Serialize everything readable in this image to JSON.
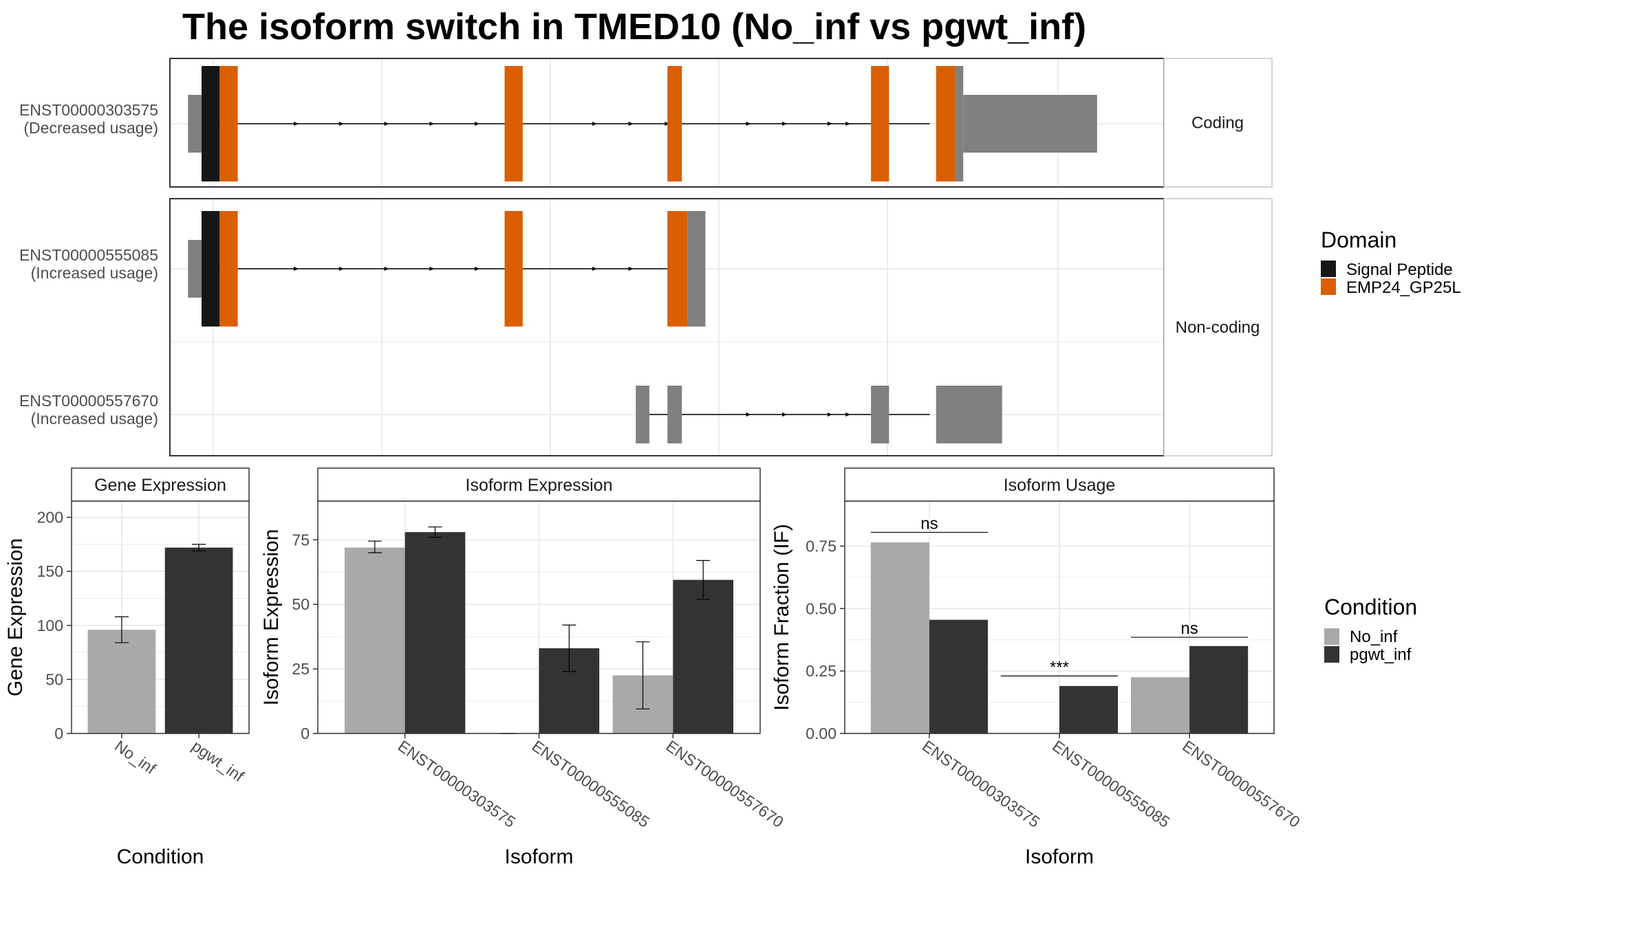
{
  "title": "The isoform switch in TMED10 (No_inf vs pgwt_inf)",
  "colors": {
    "signal_peptide": "#161616",
    "emp24": "#D95F02",
    "utr": "#808080",
    "no_inf": "#A9A9A9",
    "pgwt_inf": "#333333",
    "grid": "#EBEBEB",
    "panel_border": "#333333",
    "strip_bg": "#FFFFFF"
  },
  "chart_data": [
    {
      "type": "gene-structure",
      "facets": [
        "Coding",
        "Non-coding"
      ],
      "x_range": [
        0,
        100
      ],
      "transcripts": [
        {
          "id": "ENST00000303575",
          "label_line1": "ENST00000303575",
          "label_line2": "(Decreased usage)",
          "facet": "Coding",
          "intron": [
            2.5,
            84
          ],
          "segments": [
            {
              "start": 2.0,
              "end": 3.5,
              "kind": "utr"
            },
            {
              "start": 3.5,
              "end": 5.5,
              "kind": "signal_peptide"
            },
            {
              "start": 5.5,
              "end": 7.5,
              "kind": "emp24"
            },
            {
              "start": 37.0,
              "end": 39.0,
              "kind": "emp24"
            },
            {
              "start": 55.0,
              "end": 56.6,
              "kind": "emp24"
            },
            {
              "start": 77.5,
              "end": 79.5,
              "kind": "emp24"
            },
            {
              "start": 84.7,
              "end": 86.8,
              "kind": "emp24"
            },
            {
              "start": 86.8,
              "end": 87.7,
              "kind": "utr"
            },
            {
              "start": 87.7,
              "end": 102.5,
              "kind": "utr_small"
            }
          ],
          "arrows": [
            14,
            19,
            24,
            29,
            34,
            47,
            51,
            55,
            64,
            68,
            73,
            75
          ]
        },
        {
          "id": "ENST00000555085",
          "label_line1": "ENST00000555085",
          "label_line2": "(Increased usage)",
          "facet": "Non-coding",
          "intron": [
            2.5,
            55
          ],
          "segments": [
            {
              "start": 2.0,
              "end": 3.5,
              "kind": "utr"
            },
            {
              "start": 3.5,
              "end": 5.5,
              "kind": "signal_peptide"
            },
            {
              "start": 5.5,
              "end": 7.5,
              "kind": "emp24"
            },
            {
              "start": 37.0,
              "end": 39.0,
              "kind": "emp24"
            },
            {
              "start": 55.0,
              "end": 57.2,
              "kind": "emp24"
            },
            {
              "start": 57.2,
              "end": 59.2,
              "kind": "utr"
            }
          ],
          "arrows": [
            14,
            19,
            24,
            29,
            34,
            47,
            51
          ]
        },
        {
          "id": "ENST00000557670",
          "label_line1": "ENST00000557670",
          "label_line2": "(Increased usage)",
          "facet": "Non-coding",
          "intron": [
            52,
            84
          ],
          "segments": [
            {
              "start": 51.5,
              "end": 53.0,
              "kind": "utr_small"
            },
            {
              "start": 55.0,
              "end": 56.6,
              "kind": "utr_small"
            },
            {
              "start": 77.5,
              "end": 79.5,
              "kind": "utr_small"
            },
            {
              "start": 84.7,
              "end": 92.0,
              "kind": "utr_small"
            }
          ],
          "arrows": [
            64,
            68,
            73,
            75
          ]
        }
      ],
      "legend": {
        "title": "Domain",
        "entries": [
          {
            "label": "Signal Peptide",
            "color": "#161616"
          },
          {
            "label": "EMP24_GP25L",
            "color": "#D95F02"
          }
        ]
      }
    },
    {
      "type": "bar",
      "strip": "Gene Expression",
      "xlabel": "Condition",
      "ylabel": "Gene Expression",
      "ylim": [
        0,
        215
      ],
      "yticks": [
        0,
        50,
        100,
        150,
        200
      ],
      "categories": [
        "No_inf",
        "pgwt_inf"
      ],
      "values": [
        96,
        172
      ],
      "errors": [
        [
          84,
          108
        ],
        [
          169,
          175
        ]
      ]
    },
    {
      "type": "bar",
      "strip": "Isoform Expression",
      "xlabel": "Isoform",
      "ylabel": "Isoform Expression",
      "ylim": [
        0,
        90
      ],
      "yticks": [
        0,
        25,
        50,
        75
      ],
      "categories": [
        "ENST00000303575",
        "ENST00000555085",
        "ENST00000557670"
      ],
      "series": [
        {
          "name": "No_inf",
          "values": [
            72,
            0,
            22.5
          ],
          "errors": [
            [
              70,
              74.5
            ],
            [
              0,
              0
            ],
            [
              9.5,
              35.5
            ]
          ]
        },
        {
          "name": "pgwt_inf",
          "values": [
            78,
            33,
            59.5
          ],
          "errors": [
            [
              76,
              80
            ],
            [
              24,
              42
            ],
            [
              52,
              67
            ]
          ]
        }
      ]
    },
    {
      "type": "bar",
      "strip": "Isoform Usage",
      "xlabel": "Isoform",
      "ylabel": "Isoform Fraction (IF)",
      "ylim": [
        0,
        0.93
      ],
      "yticks": [
        "0.00",
        "0.25",
        "0.50",
        "0.75"
      ],
      "categories": [
        "ENST00000303575",
        "ENST00000555085",
        "ENST00000557670"
      ],
      "series": [
        {
          "name": "No_inf",
          "values": [
            0.765,
            0,
            0.225
          ]
        },
        {
          "name": "pgwt_inf",
          "values": [
            0.455,
            0.19,
            0.35
          ]
        }
      ],
      "significance": [
        {
          "label": "ns",
          "level": 0.805
        },
        {
          "label": "***",
          "level": 0.23
        },
        {
          "label": "ns",
          "level": 0.385
        }
      ]
    }
  ],
  "condition_legend": {
    "title": "Condition",
    "entries": [
      {
        "label": "No_inf",
        "color": "#A9A9A9"
      },
      {
        "label": "pgwt_inf",
        "color": "#333333"
      }
    ]
  }
}
